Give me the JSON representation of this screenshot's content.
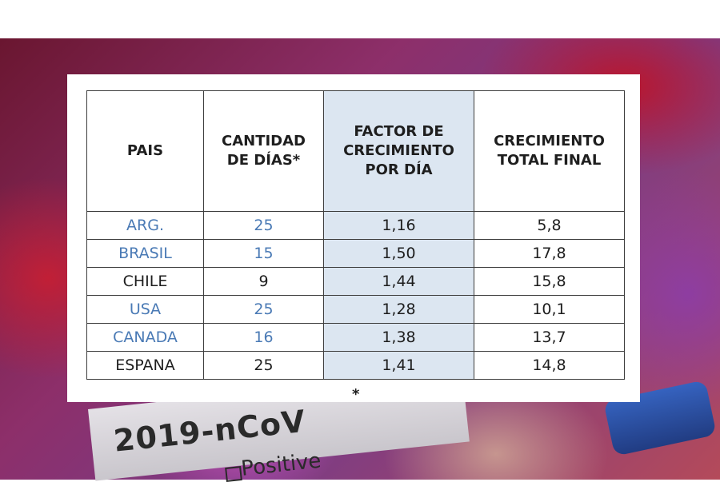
{
  "background_text": {
    "title": "2019-nCoV",
    "status": "Positive"
  },
  "table": {
    "headers": [
      "PAIS",
      "CANTIDAD\nDE DÍAS*",
      "FACTOR DE\nCRECIMIENTO\nPOR DÍA",
      "CRECIMIENTO\nTOTAL FINAL"
    ],
    "rows": [
      {
        "pais": "ARG.",
        "dias": "25",
        "factor": "1,16",
        "total": "5,8",
        "highlight": true
      },
      {
        "pais": "BRASIL",
        "dias": "15",
        "factor": "1,50",
        "total": "17,8",
        "highlight": true
      },
      {
        "pais": "CHILE",
        "dias": "9",
        "factor": "1,44",
        "total": "15,8",
        "highlight": false
      },
      {
        "pais": "USA",
        "dias": "25",
        "factor": "1,28",
        "total": "10,1",
        "highlight": true
      },
      {
        "pais": "CANADA",
        "dias": "16",
        "factor": "1,38",
        "total": "13,7",
        "highlight": true
      },
      {
        "pais": "ESPANA",
        "dias": "25",
        "factor": "1,41",
        "total": "14,8",
        "highlight": false
      }
    ]
  },
  "footnote": "*",
  "colors": {
    "highlight_text": "#4a7ab5",
    "factor_column_bg": "#dce6f1",
    "border": "#3d3d3d"
  }
}
